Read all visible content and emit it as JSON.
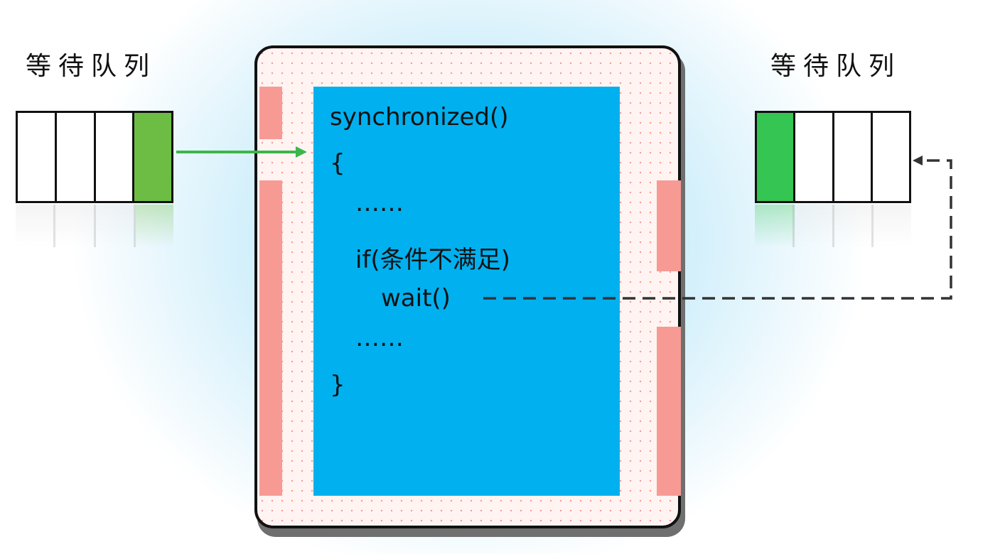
{
  "left_queue": {
    "title": "等待队列",
    "cells": [
      "",
      "",
      "",
      "active"
    ],
    "active_color": "#6dbd45"
  },
  "right_queue": {
    "title": "等待队列",
    "cells": [
      "active",
      "",
      "",
      ""
    ],
    "active_color": "#34c552"
  },
  "code": {
    "line1": "synchronized()",
    "line2": "{",
    "line3": "……",
    "line4": "if(条件不满足)",
    "line5": "wait()",
    "line6": "……",
    "line7": "}"
  },
  "colors": {
    "code_panel": "#01b0ef",
    "pink_bars": "#f79a94",
    "enter_arrow": "#3cb64a",
    "wait_arrow": "#333333"
  }
}
